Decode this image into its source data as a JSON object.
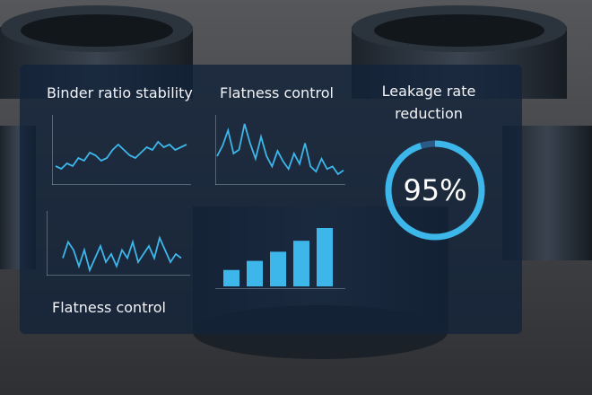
{
  "panels": [
    {
      "type": "line",
      "title": "Binder ratio stability",
      "values": [
        6,
        5,
        7,
        6,
        9,
        8,
        11,
        10,
        8,
        9,
        12,
        14,
        12,
        10,
        9,
        11,
        13,
        12,
        15,
        13,
        14,
        12,
        13,
        14
      ]
    },
    {
      "type": "line",
      "title": "Flatness control",
      "values": [
        20,
        28,
        40,
        22,
        25,
        45,
        30,
        18,
        35,
        20,
        12,
        24,
        16,
        10,
        22,
        14,
        30,
        12,
        8,
        18,
        10,
        12,
        6,
        9
      ]
    },
    {
      "type": "gauge",
      "title": "Leakage rate reduction",
      "value": 95,
      "value_label": "95%"
    },
    {
      "type": "line",
      "title": "Flatness control",
      "values": [
        10,
        14,
        12,
        8,
        12,
        7,
        10,
        13,
        9,
        11,
        8,
        12,
        10,
        14,
        9,
        11,
        13,
        10,
        15,
        12,
        9,
        11,
        10
      ]
    },
    {
      "type": "bar",
      "values": [
        18,
        28,
        38,
        50,
        64
      ]
    }
  ]
}
